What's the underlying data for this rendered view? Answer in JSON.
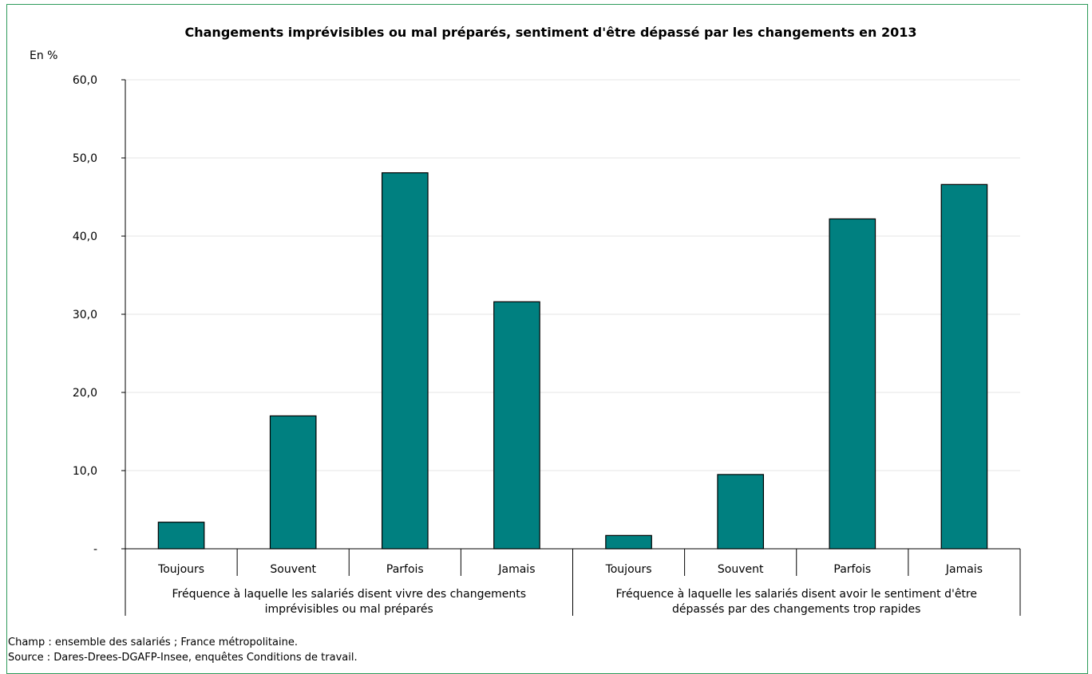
{
  "chart_data": {
    "type": "bar",
    "title": "Changements imprévisibles ou mal préparés, sentiment d'être dépassé par les changements en 2013",
    "y_unit_label": "En %",
    "ylim": [
      0,
      60
    ],
    "yticks": [
      0,
      10,
      20,
      30,
      40,
      50,
      60
    ],
    "ytick_labels": [
      "-",
      "10,0",
      "20,0",
      "30,0",
      "40,0",
      "50,0",
      "60,0"
    ],
    "grid": true,
    "bar_color": "#008080",
    "groups": [
      {
        "label": "Fréquence à laquelle les salariés disent vivre des changements imprévisibles ou mal préparés",
        "label_lines": [
          "Fréquence à laquelle les salariés disent vivre des changements",
          "imprévisibles ou mal préparés"
        ],
        "categories": [
          "Toujours",
          "Souvent",
          "Parfois",
          "Jamais"
        ],
        "values": [
          3.4,
          17.0,
          48.1,
          31.6
        ]
      },
      {
        "label": "Fréquence à laquelle les salariés disent avoir le sentiment d'être dépassés par des changements trop rapides",
        "label_lines": [
          "Fréquence à laquelle les salariés disent avoir le sentiment d'être",
          "dépassés par des changements trop rapides"
        ],
        "categories": [
          "Toujours",
          "Souvent",
          "Parfois",
          "Jamais"
        ],
        "values": [
          1.7,
          9.5,
          42.2,
          46.6
        ]
      }
    ]
  },
  "notes": {
    "champ": "Champ : ensemble des salariés ; France métropolitaine.",
    "source": "Source : Dares-Drees-DGAFP-Insee, enquêtes Conditions de travail."
  }
}
